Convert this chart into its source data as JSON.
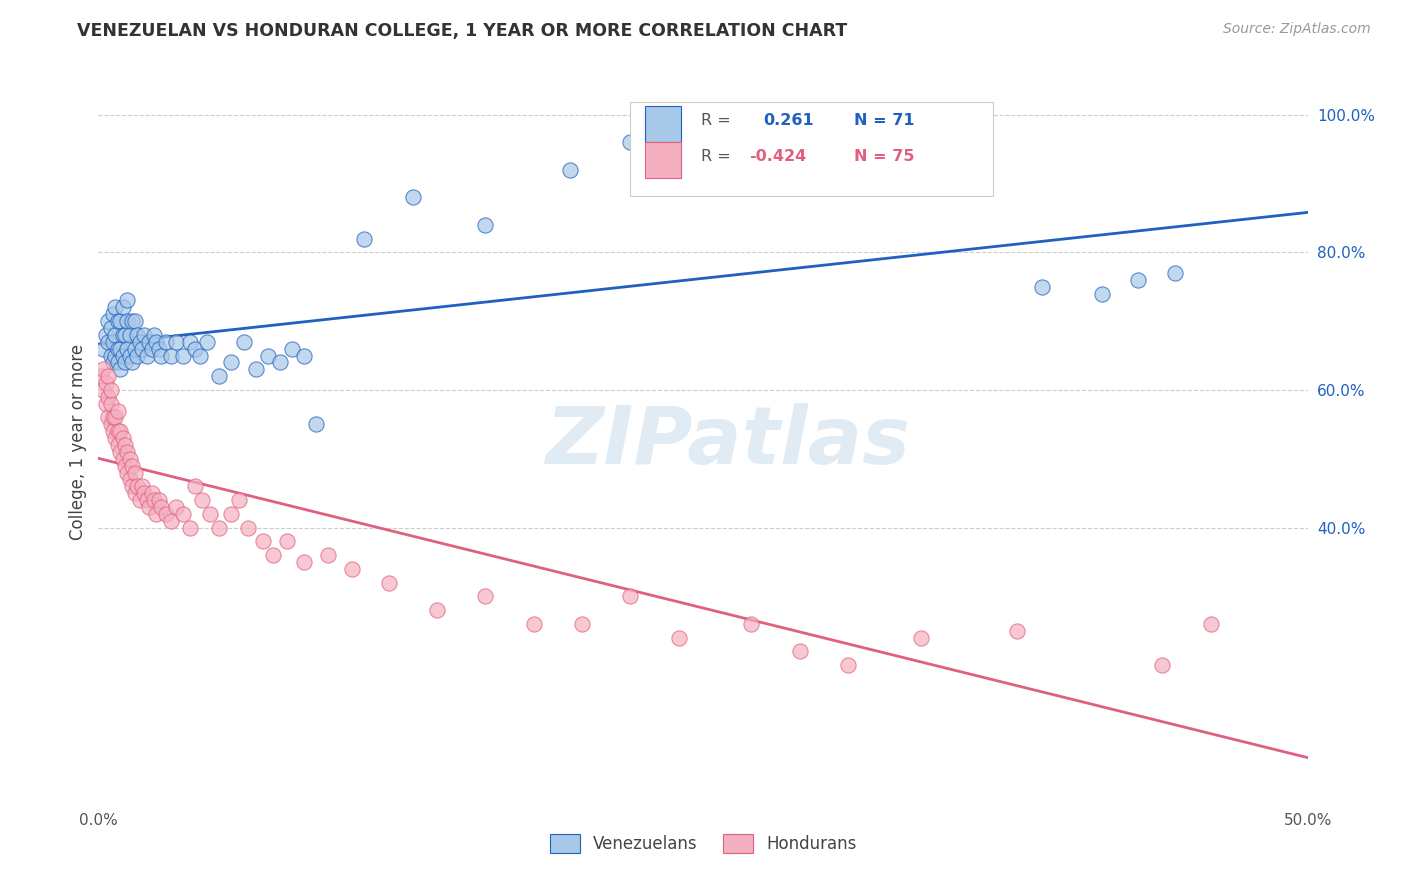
{
  "title": "VENEZUELAN VS HONDURAN COLLEGE, 1 YEAR OR MORE CORRELATION CHART",
  "source": "Source: ZipAtlas.com",
  "ylabel": "College, 1 year or more",
  "x_min": 0.0,
  "x_max": 0.5,
  "y_min": 0.0,
  "y_max": 1.05,
  "x_ticks": [
    0.0,
    0.1,
    0.2,
    0.3,
    0.4,
    0.5
  ],
  "x_tick_labels": [
    "0.0%",
    "",
    "",
    "",
    "",
    "50.0%"
  ],
  "y_ticks_right": [
    0.4,
    0.6,
    0.8,
    1.0
  ],
  "y_tick_labels_right": [
    "40.0%",
    "60.0%",
    "80.0%",
    "100.0%"
  ],
  "venezuelan_color": "#a8c8e8",
  "honduran_color": "#f4b0c0",
  "trendline_venezuelan_color": "#2060c0",
  "trendline_honduran_color": "#e06080",
  "legend_venezuelan_label": "Venezuelans",
  "legend_honduran_label": "Hondurans",
  "R_venezuelan": 0.261,
  "N_venezuelan": 71,
  "R_honduran": -0.424,
  "N_honduran": 75,
  "watermark": "ZIPatlas",
  "background_color": "#ffffff",
  "grid_color": "#cccccc",
  "venezuelan_x": [
    0.002,
    0.003,
    0.004,
    0.004,
    0.005,
    0.005,
    0.006,
    0.006,
    0.006,
    0.007,
    0.007,
    0.007,
    0.008,
    0.008,
    0.008,
    0.009,
    0.009,
    0.009,
    0.01,
    0.01,
    0.01,
    0.011,
    0.011,
    0.012,
    0.012,
    0.012,
    0.013,
    0.013,
    0.014,
    0.014,
    0.015,
    0.015,
    0.016,
    0.016,
    0.017,
    0.018,
    0.019,
    0.02,
    0.021,
    0.022,
    0.023,
    0.024,
    0.025,
    0.026,
    0.028,
    0.03,
    0.032,
    0.035,
    0.038,
    0.04,
    0.042,
    0.045,
    0.05,
    0.055,
    0.06,
    0.065,
    0.07,
    0.075,
    0.08,
    0.085,
    0.09,
    0.11,
    0.13,
    0.16,
    0.195,
    0.22,
    0.25,
    0.39,
    0.415,
    0.43,
    0.445
  ],
  "venezuelan_y": [
    0.66,
    0.68,
    0.67,
    0.7,
    0.65,
    0.69,
    0.64,
    0.67,
    0.71,
    0.65,
    0.68,
    0.72,
    0.64,
    0.66,
    0.7,
    0.63,
    0.66,
    0.7,
    0.65,
    0.68,
    0.72,
    0.64,
    0.68,
    0.66,
    0.7,
    0.73,
    0.65,
    0.68,
    0.64,
    0.7,
    0.66,
    0.7,
    0.65,
    0.68,
    0.67,
    0.66,
    0.68,
    0.65,
    0.67,
    0.66,
    0.68,
    0.67,
    0.66,
    0.65,
    0.67,
    0.65,
    0.67,
    0.65,
    0.67,
    0.66,
    0.65,
    0.67,
    0.62,
    0.64,
    0.67,
    0.63,
    0.65,
    0.64,
    0.66,
    0.65,
    0.55,
    0.82,
    0.88,
    0.84,
    0.92,
    0.96,
    0.9,
    0.75,
    0.74,
    0.76,
    0.77
  ],
  "honduran_x": [
    0.001,
    0.002,
    0.002,
    0.003,
    0.003,
    0.004,
    0.004,
    0.004,
    0.005,
    0.005,
    0.005,
    0.006,
    0.006,
    0.007,
    0.007,
    0.008,
    0.008,
    0.008,
    0.009,
    0.009,
    0.01,
    0.01,
    0.011,
    0.011,
    0.012,
    0.012,
    0.013,
    0.013,
    0.014,
    0.014,
    0.015,
    0.015,
    0.016,
    0.017,
    0.018,
    0.019,
    0.02,
    0.021,
    0.022,
    0.023,
    0.024,
    0.025,
    0.026,
    0.028,
    0.03,
    0.032,
    0.035,
    0.038,
    0.04,
    0.043,
    0.046,
    0.05,
    0.055,
    0.058,
    0.062,
    0.068,
    0.072,
    0.078,
    0.085,
    0.095,
    0.105,
    0.12,
    0.14,
    0.16,
    0.18,
    0.2,
    0.22,
    0.24,
    0.27,
    0.29,
    0.31,
    0.34,
    0.38,
    0.44,
    0.46
  ],
  "honduran_y": [
    0.62,
    0.6,
    0.63,
    0.58,
    0.61,
    0.56,
    0.59,
    0.62,
    0.55,
    0.58,
    0.6,
    0.54,
    0.56,
    0.53,
    0.56,
    0.52,
    0.54,
    0.57,
    0.51,
    0.54,
    0.5,
    0.53,
    0.49,
    0.52,
    0.48,
    0.51,
    0.47,
    0.5,
    0.46,
    0.49,
    0.45,
    0.48,
    0.46,
    0.44,
    0.46,
    0.45,
    0.44,
    0.43,
    0.45,
    0.44,
    0.42,
    0.44,
    0.43,
    0.42,
    0.41,
    0.43,
    0.42,
    0.4,
    0.46,
    0.44,
    0.42,
    0.4,
    0.42,
    0.44,
    0.4,
    0.38,
    0.36,
    0.38,
    0.35,
    0.36,
    0.34,
    0.32,
    0.28,
    0.3,
    0.26,
    0.26,
    0.3,
    0.24,
    0.26,
    0.22,
    0.2,
    0.24,
    0.25,
    0.2,
    0.26
  ]
}
